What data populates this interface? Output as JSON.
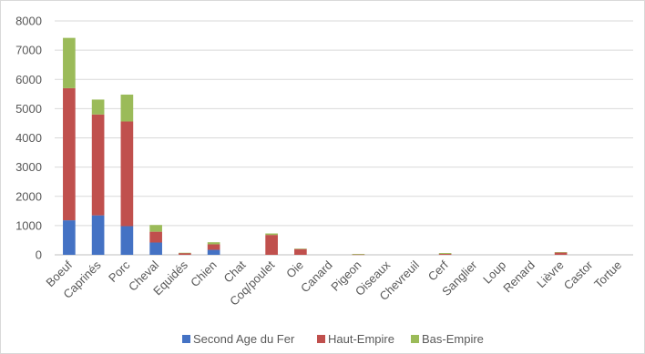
{
  "chart_data": {
    "type": "bar",
    "stacked": true,
    "title": "",
    "xlabel": "",
    "ylabel": "",
    "ylim": [
      0,
      8000
    ],
    "yticks": [
      0,
      1000,
      2000,
      3000,
      4000,
      5000,
      6000,
      7000,
      8000
    ],
    "grid": true,
    "legend_position": "bottom",
    "categories": [
      "Boeuf",
      "Caprinés",
      "Porc",
      "Cheval",
      "Equidés",
      "Chien",
      "Chat",
      "Coq/poulet",
      "Oie",
      "Canard",
      "Pigeon",
      "Oiseaux",
      "Chevreuil",
      "Cerf",
      "Sanglier",
      "Loup",
      "Renard",
      "Lièvre",
      "Castor",
      "Tortue"
    ],
    "series": [
      {
        "name": "Second Age du Fer",
        "color": "#4472c4",
        "values": [
          1180,
          1350,
          980,
          420,
          0,
          170,
          0,
          0,
          0,
          0,
          0,
          0,
          0,
          0,
          0,
          0,
          0,
          0,
          0,
          0
        ]
      },
      {
        "name": "Haut-Empire",
        "color": "#c0504d",
        "values": [
          4520,
          3450,
          3580,
          370,
          60,
          190,
          0,
          680,
          200,
          0,
          10,
          0,
          0,
          30,
          0,
          0,
          0,
          80,
          0,
          0
        ]
      },
      {
        "name": "Bas-Empire",
        "color": "#9bbb59",
        "values": [
          1720,
          510,
          920,
          230,
          10,
          70,
          0,
          50,
          10,
          0,
          20,
          0,
          0,
          30,
          0,
          0,
          0,
          10,
          0,
          0
        ]
      }
    ]
  }
}
